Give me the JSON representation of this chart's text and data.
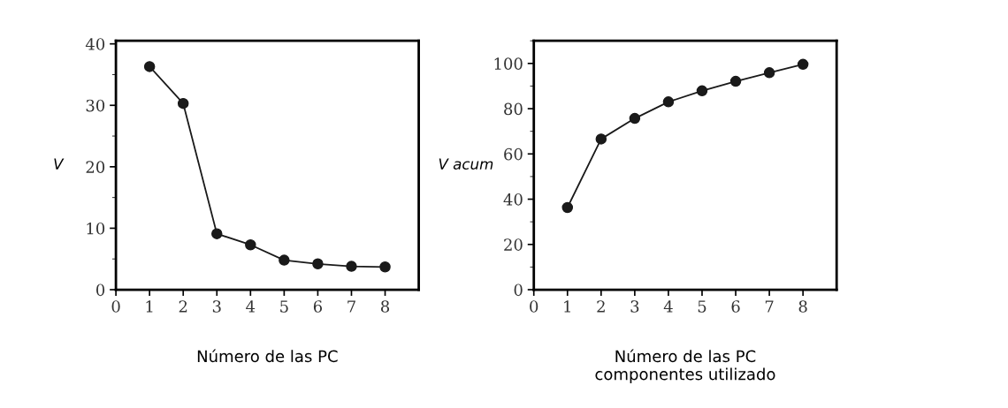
{
  "chart_data": [
    {
      "type": "line",
      "x": [
        1,
        2,
        3,
        4,
        5,
        6,
        7,
        8
      ],
      "values": [
        36.3,
        30.3,
        9.1,
        7.3,
        4.8,
        4.2,
        3.8,
        3.7
      ],
      "color": "#1a1a1a",
      "marker": "circle",
      "line_style": "solid",
      "xlim": [
        0,
        9
      ],
      "xticks": [
        0,
        1,
        2,
        3,
        4,
        5,
        6,
        7,
        8
      ],
      "ylim": [
        0,
        40.5
      ],
      "yticks": [
        0,
        10,
        20,
        30,
        40
      ],
      "xlabel": "Número de las PC",
      "ylabel": "V",
      "grid": false,
      "legend": false
    },
    {
      "type": "line",
      "x": [
        1,
        2,
        3,
        4,
        5,
        6,
        7,
        8
      ],
      "values": [
        36.3,
        66.6,
        75.7,
        83.0,
        87.9,
        92.1,
        95.9,
        99.6
      ],
      "color": "#1a1a1a",
      "marker": "circle",
      "line_style": "solid",
      "xlim": [
        0,
        9
      ],
      "xticks": [
        0,
        1,
        2,
        3,
        4,
        5,
        6,
        7,
        8
      ],
      "ylim": [
        0,
        110
      ],
      "yticks": [
        0,
        20,
        40,
        60,
        80,
        100
      ],
      "xlabel": "Número de las PC\ncomponentes utilizado",
      "ylabel": "V acum",
      "grid": false,
      "legend": false
    }
  ]
}
